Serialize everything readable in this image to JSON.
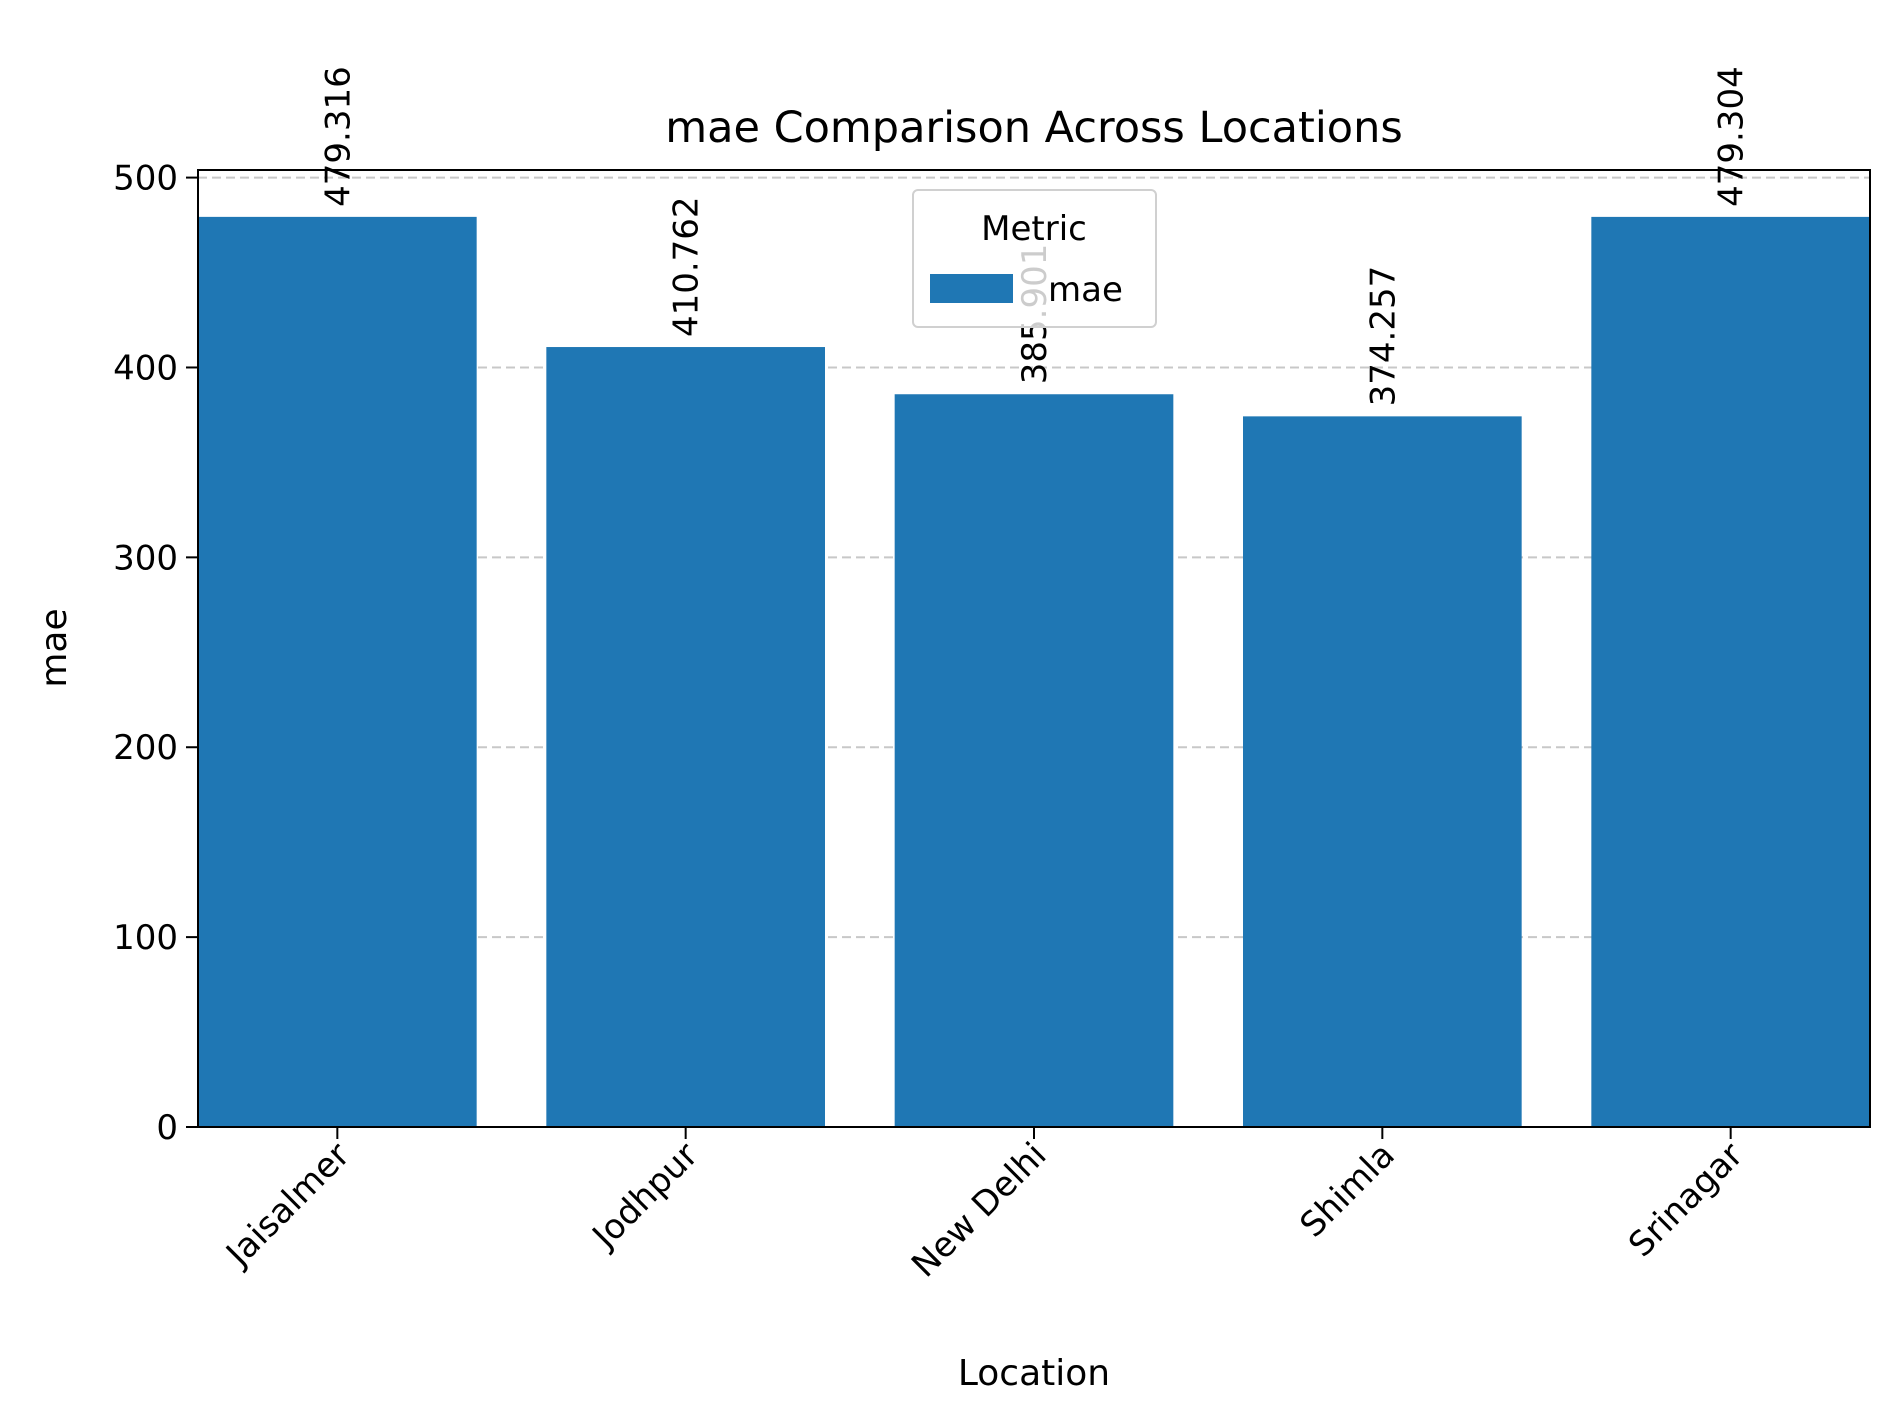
{
  "chart_data": {
    "type": "bar",
    "title": "mae Comparison Across Locations",
    "xlabel": "Location",
    "ylabel": "mae",
    "categories": [
      "Jaisalmer",
      "Jodhpur",
      "New Delhi",
      "Shimla",
      "Srinagar"
    ],
    "series": [
      {
        "name": "mae",
        "values": [
          479.316,
          410.762,
          385.901,
          374.257,
          479.304
        ],
        "labels": [
          "479.316",
          "410.762",
          "385.901",
          "374.257",
          "479.304"
        ],
        "color": "#1f77b4"
      }
    ],
    "ylim": [
      0,
      504
    ],
    "yticks": [
      0,
      100,
      200,
      300,
      400,
      500
    ],
    "grid": {
      "y": true,
      "x": false,
      "style": "dashed",
      "color": "#c8c8c8"
    },
    "legend": {
      "title": "Metric",
      "placement": "upper-center"
    }
  }
}
